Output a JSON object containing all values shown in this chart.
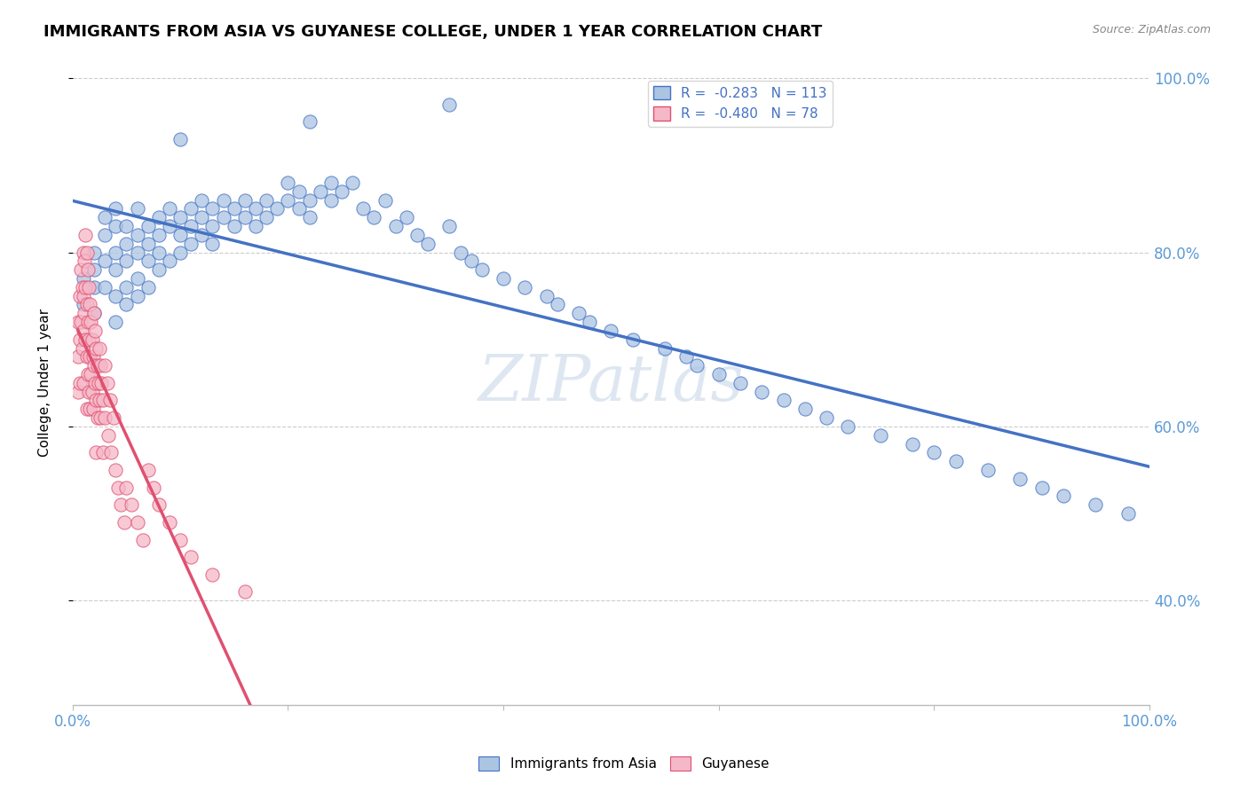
{
  "title": "IMMIGRANTS FROM ASIA VS GUYANESE COLLEGE, UNDER 1 YEAR CORRELATION CHART",
  "source": "Source: ZipAtlas.com",
  "ylabel": "College, Under 1 year",
  "legend_label1": "Immigrants from Asia",
  "legend_label2": "Guyanese",
  "r1": "-0.283",
  "n1": "113",
  "r2": "-0.480",
  "n2": "78",
  "watermark": "ZIPatlas",
  "color_blue": "#aac4e2",
  "color_pink": "#f5b8c8",
  "line_blue": "#4472c4",
  "line_pink": "#e05070",
  "blue_scatter_x": [
    0.01,
    0.01,
    0.02,
    0.02,
    0.02,
    0.02,
    0.03,
    0.03,
    0.03,
    0.03,
    0.04,
    0.04,
    0.04,
    0.04,
    0.04,
    0.04,
    0.05,
    0.05,
    0.05,
    0.05,
    0.05,
    0.06,
    0.06,
    0.06,
    0.06,
    0.06,
    0.07,
    0.07,
    0.07,
    0.07,
    0.08,
    0.08,
    0.08,
    0.08,
    0.09,
    0.09,
    0.09,
    0.1,
    0.1,
    0.1,
    0.11,
    0.11,
    0.11,
    0.12,
    0.12,
    0.12,
    0.13,
    0.13,
    0.13,
    0.14,
    0.14,
    0.15,
    0.15,
    0.16,
    0.16,
    0.17,
    0.17,
    0.18,
    0.18,
    0.19,
    0.2,
    0.2,
    0.21,
    0.21,
    0.22,
    0.22,
    0.23,
    0.24,
    0.24,
    0.25,
    0.26,
    0.27,
    0.28,
    0.29,
    0.3,
    0.31,
    0.32,
    0.33,
    0.35,
    0.36,
    0.37,
    0.38,
    0.4,
    0.42,
    0.44,
    0.45,
    0.47,
    0.48,
    0.5,
    0.52,
    0.55,
    0.57,
    0.58,
    0.6,
    0.62,
    0.64,
    0.66,
    0.68,
    0.7,
    0.72,
    0.75,
    0.78,
    0.8,
    0.82,
    0.85,
    0.88,
    0.9,
    0.92,
    0.95,
    0.98,
    0.1,
    0.22,
    0.35
  ],
  "blue_scatter_y": [
    0.77,
    0.74,
    0.8,
    0.76,
    0.78,
    0.73,
    0.82,
    0.79,
    0.84,
    0.76,
    0.8,
    0.83,
    0.78,
    0.75,
    0.85,
    0.72,
    0.81,
    0.83,
    0.76,
    0.79,
    0.74,
    0.82,
    0.8,
    0.77,
    0.85,
    0.75,
    0.83,
    0.81,
    0.79,
    0.76,
    0.84,
    0.82,
    0.8,
    0.78,
    0.85,
    0.83,
    0.79,
    0.84,
    0.82,
    0.8,
    0.85,
    0.83,
    0.81,
    0.86,
    0.84,
    0.82,
    0.85,
    0.83,
    0.81,
    0.86,
    0.84,
    0.85,
    0.83,
    0.86,
    0.84,
    0.85,
    0.83,
    0.86,
    0.84,
    0.85,
    0.88,
    0.86,
    0.87,
    0.85,
    0.86,
    0.84,
    0.87,
    0.88,
    0.86,
    0.87,
    0.88,
    0.85,
    0.84,
    0.86,
    0.83,
    0.84,
    0.82,
    0.81,
    0.83,
    0.8,
    0.79,
    0.78,
    0.77,
    0.76,
    0.75,
    0.74,
    0.73,
    0.72,
    0.71,
    0.7,
    0.69,
    0.68,
    0.67,
    0.66,
    0.65,
    0.64,
    0.63,
    0.62,
    0.61,
    0.6,
    0.59,
    0.58,
    0.57,
    0.56,
    0.55,
    0.54,
    0.53,
    0.52,
    0.51,
    0.5,
    0.93,
    0.95,
    0.97
  ],
  "pink_scatter_x": [
    0.005,
    0.005,
    0.005,
    0.007,
    0.007,
    0.007,
    0.008,
    0.008,
    0.009,
    0.009,
    0.01,
    0.01,
    0.01,
    0.01,
    0.011,
    0.011,
    0.012,
    0.012,
    0.012,
    0.013,
    0.013,
    0.013,
    0.013,
    0.014,
    0.014,
    0.014,
    0.015,
    0.015,
    0.015,
    0.016,
    0.016,
    0.016,
    0.017,
    0.017,
    0.018,
    0.018,
    0.019,
    0.019,
    0.02,
    0.02,
    0.021,
    0.021,
    0.022,
    0.022,
    0.022,
    0.023,
    0.023,
    0.024,
    0.025,
    0.025,
    0.026,
    0.026,
    0.027,
    0.028,
    0.028,
    0.03,
    0.03,
    0.032,
    0.033,
    0.035,
    0.036,
    0.038,
    0.04,
    0.042,
    0.045,
    0.048,
    0.05,
    0.055,
    0.06,
    0.065,
    0.07,
    0.075,
    0.08,
    0.09,
    0.1,
    0.11,
    0.13,
    0.16
  ],
  "pink_scatter_y": [
    0.72,
    0.68,
    0.64,
    0.75,
    0.7,
    0.65,
    0.78,
    0.72,
    0.76,
    0.69,
    0.8,
    0.75,
    0.71,
    0.65,
    0.79,
    0.73,
    0.82,
    0.76,
    0.7,
    0.8,
    0.74,
    0.68,
    0.62,
    0.78,
    0.72,
    0.66,
    0.76,
    0.7,
    0.64,
    0.74,
    0.68,
    0.62,
    0.72,
    0.66,
    0.7,
    0.64,
    0.68,
    0.62,
    0.73,
    0.67,
    0.71,
    0.65,
    0.69,
    0.63,
    0.57,
    0.67,
    0.61,
    0.65,
    0.69,
    0.63,
    0.67,
    0.61,
    0.65,
    0.63,
    0.57,
    0.67,
    0.61,
    0.65,
    0.59,
    0.63,
    0.57,
    0.61,
    0.55,
    0.53,
    0.51,
    0.49,
    0.53,
    0.51,
    0.49,
    0.47,
    0.55,
    0.53,
    0.51,
    0.49,
    0.47,
    0.45,
    0.43,
    0.41
  ]
}
